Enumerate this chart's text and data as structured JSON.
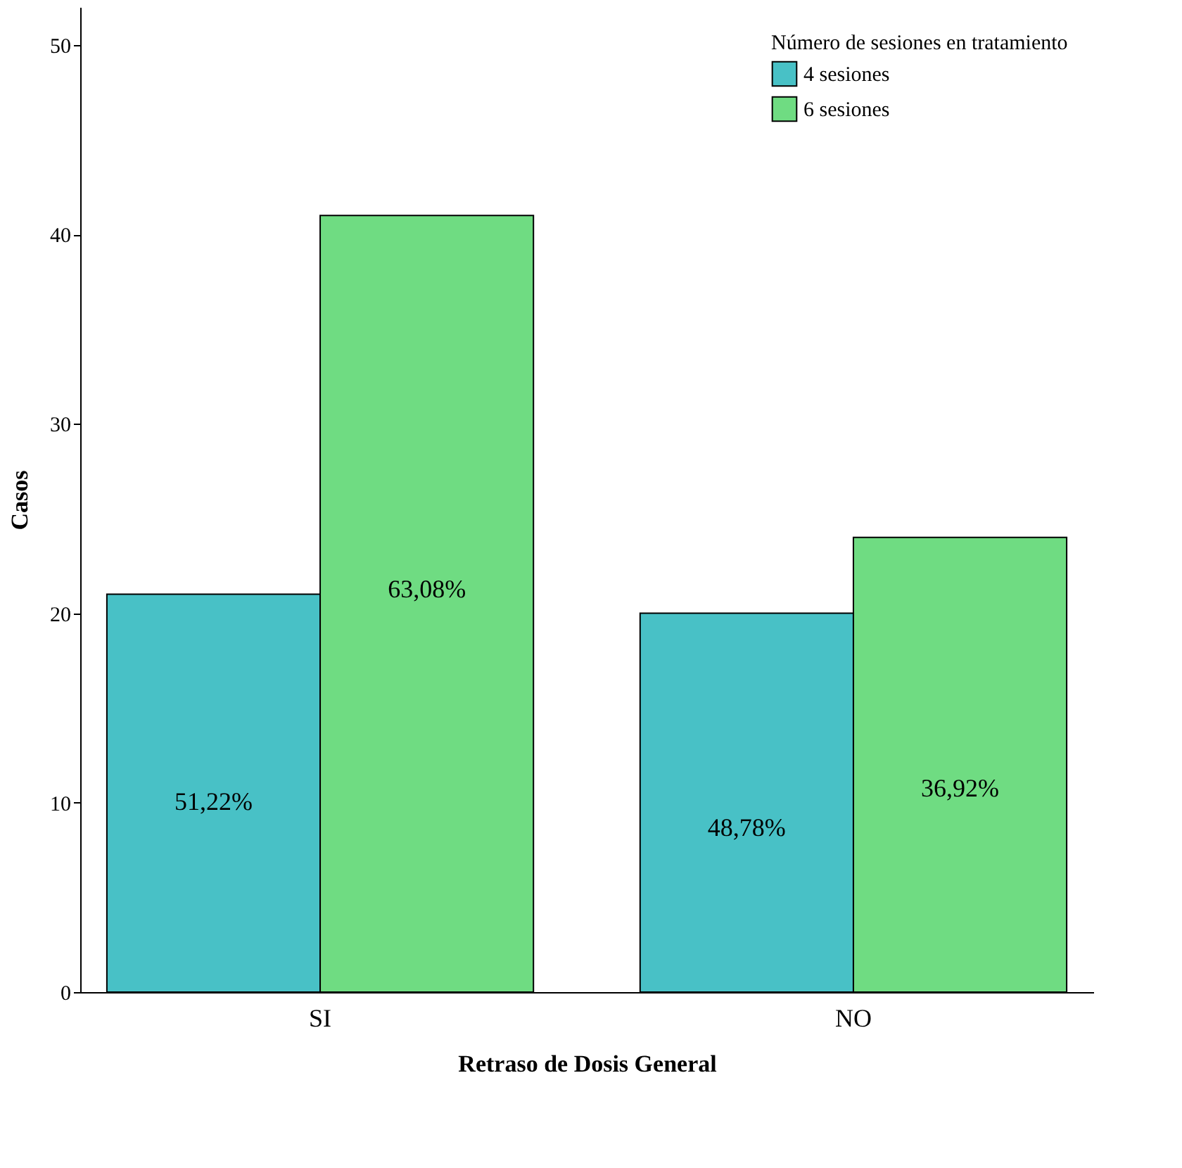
{
  "chart_data": {
    "type": "bar",
    "xlabel": "Retraso de Dosis General",
    "ylabel": "Casos",
    "legend_title": "Número de sesiones en tratamiento",
    "categories": [
      "SI",
      "NO"
    ],
    "series": [
      {
        "name": "4 sesiones",
        "color": "#48c1c6",
        "values": [
          21,
          20
        ]
      },
      {
        "name": "6 sesiones",
        "color": "#6fdc82",
        "values": [
          41,
          24
        ]
      }
    ],
    "annotations": [
      {
        "text": "51,22%",
        "x": "SI",
        "y": 10
      },
      {
        "text": "63,08%",
        "x": "SI",
        "y": 21.2
      },
      {
        "text": "48,78%",
        "x": "NO",
        "y": 8.6
      },
      {
        "text": "36,92%",
        "x": "NO",
        "y": 10.7
      }
    ],
    "ylim": [
      0,
      52
    ],
    "yticks": [
      0,
      10,
      20,
      30,
      40,
      50
    ],
    "grid": false,
    "legend": "top right"
  }
}
